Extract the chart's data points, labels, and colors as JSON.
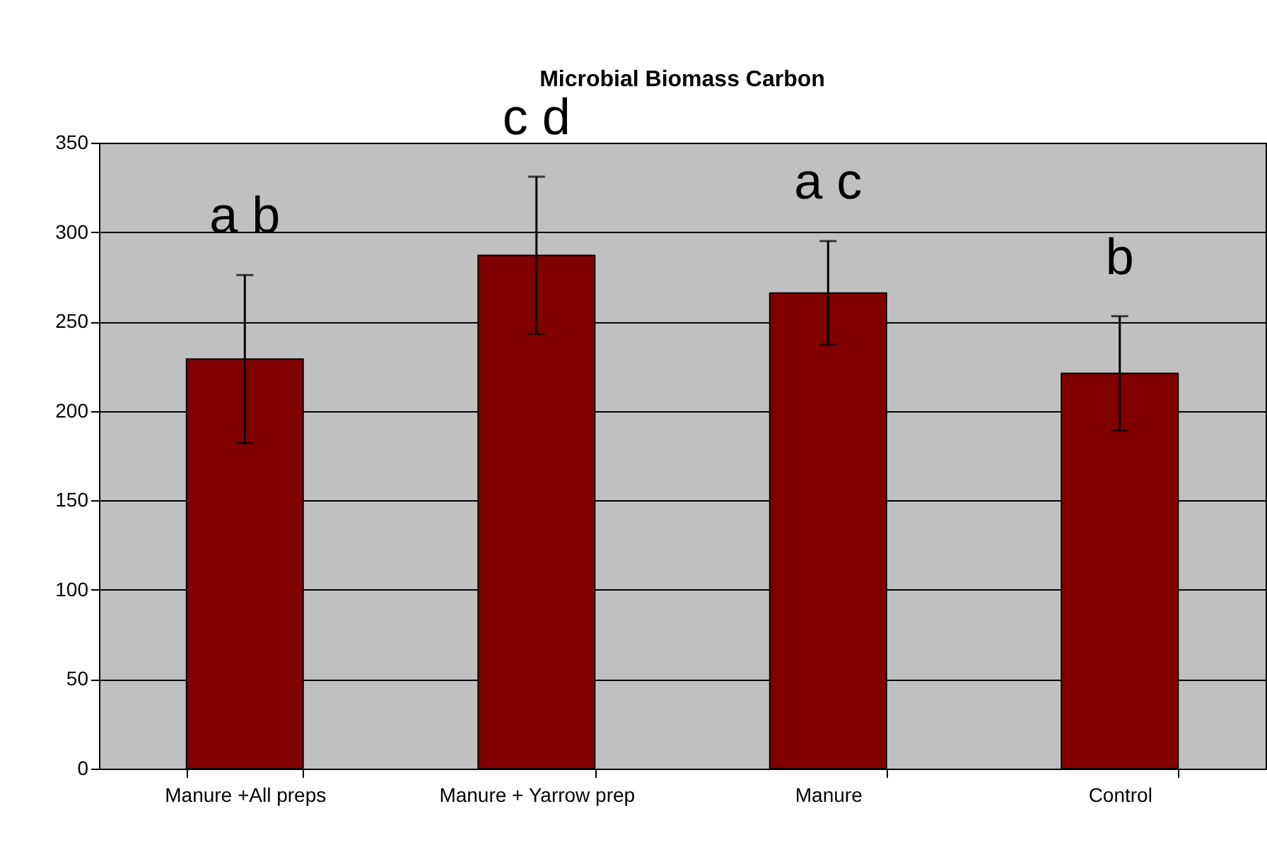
{
  "chart_data": {
    "type": "bar",
    "title": "Microbial Biomass Carbon",
    "categories": [
      "Manure +All preps",
      "Manure + Yarrow prep",
      "Manure",
      "Control"
    ],
    "values": [
      229,
      287,
      266,
      221
    ],
    "errors": [
      47,
      44,
      29,
      32
    ],
    "color": "#800000",
    "ylim": [
      0,
      350
    ],
    "yticks": [
      0,
      50,
      100,
      150,
      200,
      250,
      300,
      350
    ],
    "grid": "y",
    "annotations": [
      "a b",
      "c d",
      "a c",
      "b"
    ]
  }
}
